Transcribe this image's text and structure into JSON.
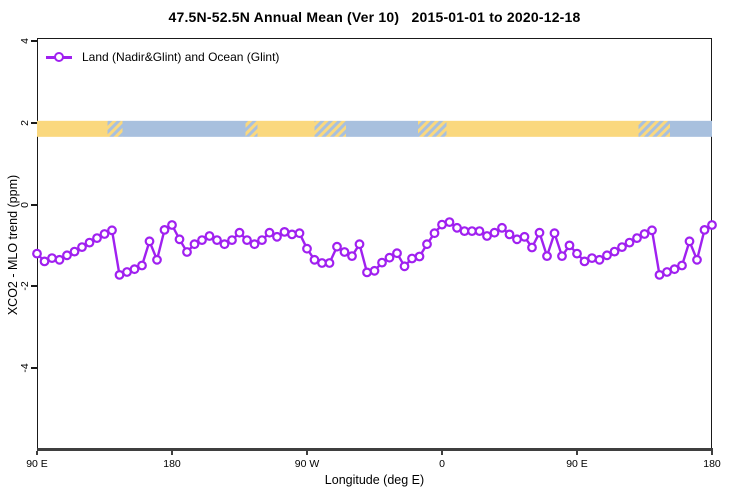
{
  "title": "47.5N-52.5N Annual Mean (Ver 10)   2015-01-01 to 2020-12-18",
  "legend": {
    "label": "Land (Nadir&Glint) and Ocean (Glint)"
  },
  "colors": {
    "series": "#A020F0",
    "land": "#FAD87E",
    "ocean": "#A8C0DE",
    "axis": "#3f3f3f",
    "box": "#1a1a1a"
  },
  "chart_data": {
    "type": "line",
    "title": "47.5N-52.5N Annual Mean (Ver 10)  2015-01-01 to 2020-12-18",
    "xlabel": "Longitude (deg E)",
    "ylabel": "XCO2 - MLO trend (ppm)",
    "xlim": [
      90,
      540
    ],
    "ylim": [
      -6,
      4.07
    ],
    "grid": false,
    "legend_position": "top-left-inside",
    "x_ticks": [
      {
        "value": 90,
        "label": "90 E"
      },
      {
        "value": 180,
        "label": "180"
      },
      {
        "value": 270,
        "label": "90 W"
      },
      {
        "value": 360,
        "label": "0"
      },
      {
        "value": 450,
        "label": "90 E"
      },
      {
        "value": 540,
        "label": "180"
      }
    ],
    "y_ticks": [
      {
        "value": 4,
        "label": "4"
      },
      {
        "value": 2,
        "label": "2"
      },
      {
        "value": 0,
        "label": "0"
      },
      {
        "value": -2,
        "label": "-2"
      },
      {
        "value": -4,
        "label": "-4"
      }
    ],
    "surface_band": {
      "y_value": 1.85,
      "legend": {
        "land": "#FAD87E",
        "ocean": "#A8C0DE"
      },
      "segments": [
        {
          "from": 90,
          "to": 137,
          "surface": "land"
        },
        {
          "from": 137,
          "to": 147,
          "surface": "mixed"
        },
        {
          "from": 147,
          "to": 229,
          "surface": "ocean"
        },
        {
          "from": 229,
          "to": 237,
          "surface": "mixed"
        },
        {
          "from": 237,
          "to": 275,
          "surface": "land"
        },
        {
          "from": 275,
          "to": 296,
          "surface": "mixed"
        },
        {
          "from": 296,
          "to": 344,
          "surface": "ocean"
        },
        {
          "from": 344,
          "to": 363,
          "surface": "mixed"
        },
        {
          "from": 363,
          "to": 491,
          "surface": "land"
        },
        {
          "from": 491,
          "to": 512,
          "surface": "mixed"
        },
        {
          "from": 512,
          "to": 540,
          "surface": "ocean"
        }
      ]
    },
    "series": [
      {
        "name": "Land (Nadir&Glint) and Ocean (Glint)",
        "color": "#A020F0",
        "marker": "open-circle",
        "x": [
          90,
          95,
          100,
          105,
          110,
          115,
          120,
          125,
          130,
          135,
          140,
          145,
          150,
          155,
          160,
          165,
          170,
          175,
          180,
          185,
          190,
          195,
          200,
          205,
          210,
          215,
          220,
          225,
          230,
          235,
          240,
          245,
          250,
          255,
          260,
          265,
          270,
          275,
          280,
          285,
          290,
          295,
          300,
          305,
          310,
          315,
          320,
          325,
          330,
          335,
          340,
          345,
          350,
          355,
          360,
          365,
          370,
          375,
          380,
          385,
          390,
          395,
          400,
          405,
          410,
          415,
          420,
          425,
          430,
          435,
          440,
          445,
          450,
          455,
          460,
          465,
          470,
          475,
          480,
          485,
          490,
          495,
          500,
          505,
          510,
          515,
          520,
          525,
          530,
          535,
          540
        ],
        "values": [
          -1.2,
          -1.39,
          -1.31,
          -1.35,
          -1.24,
          -1.15,
          -1.04,
          -0.93,
          -0.82,
          -0.72,
          -0.63,
          -1.72,
          -1.65,
          -1.58,
          -1.49,
          -0.9,
          -1.35,
          -0.62,
          -0.5,
          -0.85,
          -1.16,
          -0.97,
          -0.87,
          -0.77,
          -0.87,
          -0.97,
          -0.87,
          -0.69,
          -0.87,
          -0.97,
          -0.87,
          -0.69,
          -0.79,
          -0.67,
          -0.73,
          -0.7,
          -1.08,
          -1.35,
          -1.43,
          -1.43,
          -1.03,
          -1.16,
          -1.26,
          -0.97,
          -1.66,
          -1.62,
          -1.42,
          -1.3,
          -1.19,
          -1.51,
          -1.32,
          -1.27,
          -0.97,
          -0.7,
          -0.49,
          -0.43,
          -0.57,
          -0.65,
          -0.65,
          -0.65,
          -0.77,
          -0.69,
          -0.57,
          -0.73,
          -0.85,
          -0.79,
          -1.05,
          -0.69,
          -1.26,
          -0.7,
          -1.26,
          -1.0,
          -1.2,
          -1.39,
          -1.31,
          -1.35,
          -1.24,
          -1.15,
          -1.04,
          -0.93,
          -0.82,
          -0.72,
          -0.63,
          -1.72,
          -1.65,
          -1.58,
          -1.49,
          -0.9,
          -1.35,
          -0.62,
          -0.5
        ]
      }
    ]
  }
}
